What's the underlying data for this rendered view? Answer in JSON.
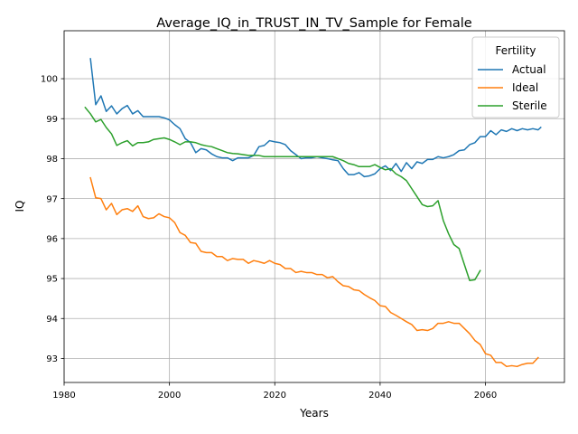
{
  "chart_data": {
    "type": "line",
    "title": "Average_IQ_in_TRUST_IN_TV_Sample for Female",
    "xlabel": "Years",
    "ylabel": "IQ",
    "xlim": [
      1980,
      2075
    ],
    "ylim": [
      92.4,
      101.2
    ],
    "x_ticks": [
      1980,
      2000,
      2020,
      2040,
      2060
    ],
    "y_ticks": [
      93,
      94,
      95,
      96,
      97,
      98,
      99,
      100
    ],
    "grid": true,
    "legend": {
      "title": "Fertility",
      "placement": "top-right"
    },
    "series": [
      {
        "name": "Actual",
        "color": "#1f77b4",
        "x": [
          1985,
          1986,
          1987,
          1988,
          1989,
          1990,
          1991,
          1992,
          1993,
          1994,
          1995,
          1996,
          1997,
          1998,
          1999,
          2000,
          2001,
          2002,
          2003,
          2004,
          2005,
          2006,
          2007,
          2008,
          2009,
          2010,
          2011,
          2012,
          2013,
          2014,
          2015,
          2016,
          2017,
          2018,
          2019,
          2020,
          2021,
          2022,
          2023,
          2024,
          2025,
          2026,
          2027,
          2028,
          2029,
          2030,
          2031,
          2032,
          2033,
          2034,
          2035,
          2036,
          2037,
          2038,
          2039,
          2040,
          2041,
          2042,
          2043,
          2044,
          2045,
          2046,
          2047,
          2048,
          2049,
          2050,
          2051,
          2052,
          2053,
          2054,
          2055,
          2056,
          2057,
          2058,
          2059,
          2060,
          2061,
          2062,
          2063,
          2064,
          2065,
          2066,
          2067,
          2068,
          2069,
          2070
        ],
        "y": [
          100.5,
          99.35,
          99.57,
          99.18,
          99.32,
          99.12,
          99.25,
          99.33,
          99.12,
          99.2,
          99.05,
          99.05,
          99.05,
          99.05,
          99.02,
          98.97,
          98.85,
          98.75,
          98.5,
          98.4,
          98.15,
          98.25,
          98.22,
          98.12,
          98.05,
          98.02,
          98.02,
          97.95,
          98.02,
          98.02,
          98.02,
          98.08,
          98.3,
          98.33,
          98.45,
          98.42,
          98.4,
          98.35,
          98.2,
          98.1,
          98.0,
          98.02,
          98.02,
          98.05,
          98.02,
          98.0,
          97.97,
          97.95,
          97.75,
          97.6,
          97.6,
          97.65,
          97.55,
          97.57,
          97.62,
          97.75,
          97.82,
          97.7,
          97.88,
          97.68,
          97.9,
          97.75,
          97.92,
          97.88,
          97.98,
          97.98,
          98.05,
          98.02,
          98.05,
          98.1,
          98.2,
          98.22,
          98.35,
          98.4,
          98.55,
          98.55,
          98.7,
          98.6,
          98.72,
          98.68,
          98.75,
          98.7,
          98.75,
          98.72,
          98.75,
          98.72
        ],
        "x_extra": [
          2070.5
        ],
        "y_extra": [
          98.78
        ]
      },
      {
        "name": "Ideal",
        "color": "#ff7f0e",
        "x": [
          1985,
          1986,
          1987,
          1988,
          1989,
          1990,
          1991,
          1992,
          1993,
          1994,
          1995,
          1996,
          1997,
          1998,
          1999,
          2000,
          2001,
          2002,
          2003,
          2004,
          2005,
          2006,
          2007,
          2008,
          2009,
          2010,
          2011,
          2012,
          2013,
          2014,
          2015,
          2016,
          2017,
          2018,
          2019,
          2020,
          2021,
          2022,
          2023,
          2024,
          2025,
          2026,
          2027,
          2028,
          2029,
          2030,
          2031,
          2032,
          2033,
          2034,
          2035,
          2036,
          2037,
          2038,
          2039,
          2040,
          2041,
          2042,
          2043,
          2044,
          2045,
          2046,
          2047,
          2048,
          2049,
          2050,
          2051,
          2052,
          2053,
          2054,
          2055,
          2056,
          2057,
          2058,
          2059,
          2060,
          2061,
          2062,
          2063,
          2064,
          2065,
          2066,
          2067,
          2068,
          2069,
          2070
        ],
        "y": [
          97.52,
          97.02,
          97.0,
          96.72,
          96.88,
          96.6,
          96.72,
          96.75,
          96.68,
          96.82,
          96.55,
          96.5,
          96.52,
          96.62,
          96.55,
          96.52,
          96.4,
          96.15,
          96.08,
          95.9,
          95.88,
          95.68,
          95.65,
          95.65,
          95.55,
          95.55,
          95.45,
          95.5,
          95.48,
          95.48,
          95.38,
          95.45,
          95.42,
          95.38,
          95.45,
          95.38,
          95.35,
          95.25,
          95.25,
          95.15,
          95.18,
          95.15,
          95.15,
          95.1,
          95.1,
          95.02,
          95.05,
          94.92,
          94.82,
          94.8,
          94.72,
          94.7,
          94.6,
          94.52,
          94.45,
          94.32,
          94.3,
          94.15,
          94.08,
          94.0,
          93.92,
          93.85,
          93.7,
          93.72,
          93.7,
          93.75,
          93.88,
          93.88,
          93.92,
          93.88,
          93.88,
          93.75,
          93.62,
          93.45,
          93.35,
          93.12,
          93.08,
          92.9,
          92.9,
          92.8,
          92.82,
          92.8,
          92.85,
          92.88,
          92.88,
          93.02
        ]
      },
      {
        "name": "Sterile",
        "color": "#2ca02c",
        "x": [
          1984,
          1985,
          1986,
          1987,
          1988,
          1989,
          1990,
          1991,
          1992,
          1993,
          1994,
          1995,
          1996,
          1997,
          1998,
          1999,
          2000,
          2001,
          2002,
          2003,
          2004,
          2005,
          2006,
          2007,
          2008,
          2009,
          2010,
          2011,
          2012,
          2013,
          2014,
          2015,
          2016,
          2017,
          2018,
          2019,
          2020,
          2021,
          2022,
          2023,
          2024,
          2025,
          2026,
          2027,
          2028,
          2029,
          2030,
          2031,
          2032,
          2033,
          2034,
          2035,
          2036,
          2037,
          2038,
          2039,
          2040,
          2041,
          2042,
          2043,
          2044,
          2045,
          2046,
          2047,
          2048,
          2049,
          2050,
          2051,
          2052,
          2053,
          2054,
          2055,
          2056,
          2057,
          2058,
          2059
        ],
        "y": [
          99.28,
          99.12,
          98.92,
          98.98,
          98.78,
          98.62,
          98.33,
          98.4,
          98.45,
          98.32,
          98.4,
          98.4,
          98.42,
          98.48,
          98.5,
          98.52,
          98.48,
          98.42,
          98.35,
          98.42,
          98.42,
          98.4,
          98.35,
          98.32,
          98.3,
          98.25,
          98.2,
          98.15,
          98.13,
          98.12,
          98.1,
          98.08,
          98.08,
          98.08,
          98.05,
          98.05,
          98.05,
          98.05,
          98.05,
          98.05,
          98.05,
          98.05,
          98.05,
          98.05,
          98.05,
          98.05,
          98.05,
          98.05,
          98.0,
          97.95,
          97.88,
          97.85,
          97.8,
          97.8,
          97.8,
          97.85,
          97.78,
          97.72,
          97.75,
          97.62,
          97.55,
          97.45,
          97.25,
          97.05,
          96.85,
          96.8,
          96.82,
          96.95,
          96.45,
          96.12,
          95.85,
          95.75,
          95.35,
          94.95,
          94.97,
          95.2
        ]
      }
    ]
  }
}
